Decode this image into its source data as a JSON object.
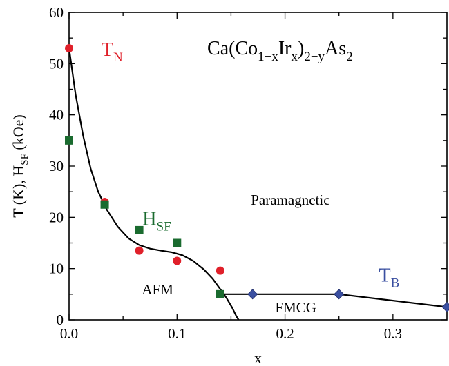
{
  "chart_data": {
    "type": "scatter",
    "xlabel": "x",
    "ylabel": {
      "main": "T (K),   H",
      "sub": "SF",
      "unit": " (kOe)"
    },
    "xlim": [
      0.0,
      0.35
    ],
    "ylim": [
      0,
      60
    ],
    "x_ticks": [
      0.0,
      0.1,
      0.2,
      0.3
    ],
    "x_tick_labels": [
      "0.0",
      "0.1",
      "0.2",
      "0.3"
    ],
    "y_ticks": [
      0,
      10,
      20,
      30,
      40,
      50,
      60
    ],
    "y_tick_labels": [
      "0",
      "10",
      "20",
      "30",
      "40",
      "50",
      "60"
    ],
    "grid": false,
    "formula": {
      "parts": [
        {
          "text": "Ca(Co",
          "sub": false
        },
        {
          "text": "1−x",
          "sub": true
        },
        {
          "text": "Ir",
          "sub": false
        },
        {
          "text": "x",
          "sub": true
        },
        {
          "text": ")",
          "sub": false
        },
        {
          "text": "2−y",
          "sub": true
        },
        {
          "text": "As",
          "sub": false
        },
        {
          "text": "2",
          "sub": true
        }
      ]
    },
    "regions": [
      {
        "label": "Paramagnetic",
        "x": 0.205,
        "y": 22.5
      },
      {
        "label": "AFM",
        "x": 0.082,
        "y": 5.0
      },
      {
        "label": "FMCG",
        "x": 0.21,
        "y": 1.5
      }
    ],
    "series": [
      {
        "name": "T",
        "name_sub": "N",
        "marker": "circle",
        "color": "#e0202a",
        "label_pos": {
          "x": 0.03,
          "y": 51.5
        },
        "points": [
          {
            "x": 0.0,
            "y": 53.0
          },
          {
            "x": 0.033,
            "y": 23.0
          },
          {
            "x": 0.065,
            "y": 13.5
          },
          {
            "x": 0.1,
            "y": 11.5
          },
          {
            "x": 0.14,
            "y": 9.6
          }
        ]
      },
      {
        "name": "H",
        "name_sub": "SF",
        "marker": "square",
        "color": "#1a6b2f",
        "label_pos": {
          "x": 0.068,
          "y": 18.5
        },
        "points": [
          {
            "x": 0.0,
            "y": 35.0
          },
          {
            "x": 0.033,
            "y": 22.5
          },
          {
            "x": 0.065,
            "y": 17.5
          },
          {
            "x": 0.1,
            "y": 15.0
          },
          {
            "x": 0.14,
            "y": 5.0
          }
        ]
      },
      {
        "name": "T",
        "name_sub": "B",
        "marker": "diamond",
        "color": "#3a4fa0",
        "label_pos": {
          "x": 0.287,
          "y": 7.5
        },
        "points": [
          {
            "x": 0.17,
            "y": 5.0
          },
          {
            "x": 0.25,
            "y": 5.0
          },
          {
            "x": 0.35,
            "y": 2.5
          }
        ]
      }
    ],
    "boundaries": [
      {
        "name": "AFM-phase-boundary",
        "points": [
          [
            0.0,
            53.0
          ],
          [
            0.006,
            44.0
          ],
          [
            0.013,
            36.0
          ],
          [
            0.02,
            29.5
          ],
          [
            0.027,
            25.0
          ],
          [
            0.035,
            21.5
          ],
          [
            0.045,
            18.2
          ],
          [
            0.055,
            15.9
          ],
          [
            0.065,
            14.6
          ],
          [
            0.075,
            13.9
          ],
          [
            0.085,
            13.5
          ],
          [
            0.095,
            13.2
          ],
          [
            0.105,
            12.6
          ],
          [
            0.115,
            11.5
          ],
          [
            0.125,
            9.8
          ],
          [
            0.133,
            8.0
          ],
          [
            0.14,
            6.0
          ],
          [
            0.146,
            4.2
          ],
          [
            0.151,
            2.4
          ],
          [
            0.155,
            0.7
          ],
          [
            0.157,
            0.0
          ]
        ]
      },
      {
        "name": "FMCG-boundary",
        "points": [
          [
            0.14,
            5.0
          ],
          [
            0.25,
            5.0
          ],
          [
            0.35,
            2.5
          ]
        ]
      }
    ]
  }
}
